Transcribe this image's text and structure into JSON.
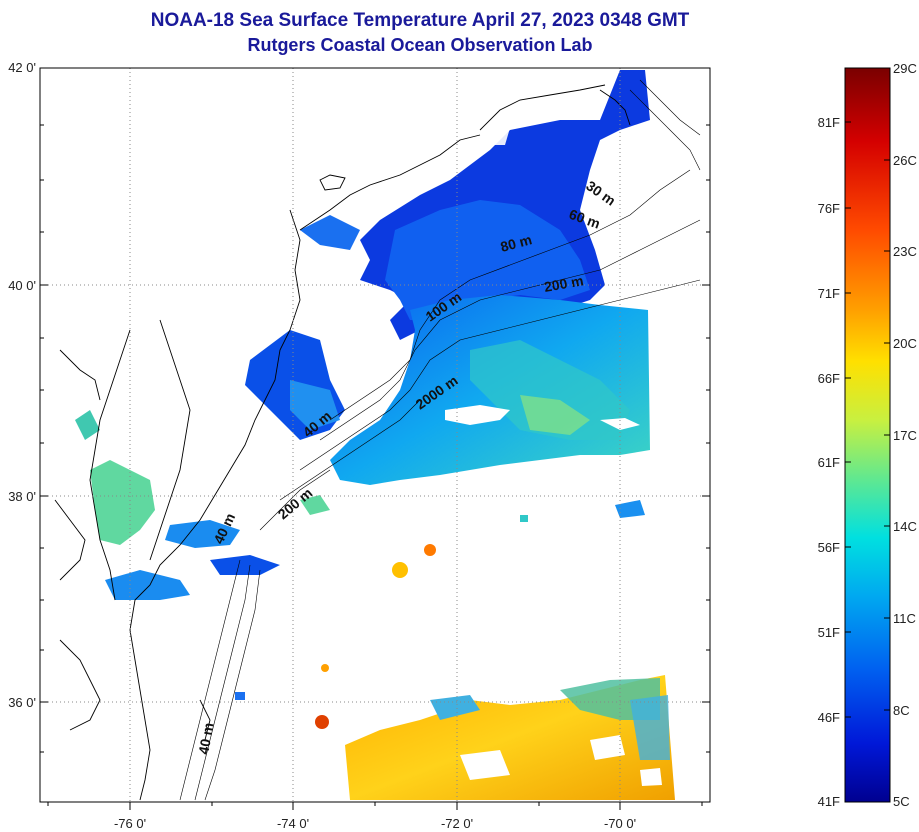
{
  "title_line1": "NOAA-18 Sea Surface Temperature April 27, 2023 0348 GMT",
  "title_line2": "Rutgers Coastal Ocean Observation Lab",
  "lat_labels": [
    "42 0'",
    "40 0'",
    "38 0'",
    "36 0'"
  ],
  "lon_labels": [
    "-76 0'",
    "-74 0'",
    "-72 0'",
    "-70 0'"
  ],
  "depth_labels": [
    "30 m",
    "60 m",
    "80 m",
    "200 m",
    "100 m",
    "2000 m",
    "40 m",
    "200 m",
    "40 m",
    "40 m"
  ],
  "colorbar": {
    "celsius": [
      "29C",
      "26C",
      "23C",
      "20C",
      "17C",
      "14C",
      "11C",
      "8C",
      "5C"
    ],
    "fahrenheit": [
      "81F",
      "76F",
      "71F",
      "66F",
      "61F",
      "56F",
      "51F",
      "46F",
      "41F"
    ],
    "gradient_colors": [
      "#7a0000",
      "#d40000",
      "#ff4a00",
      "#ffa000",
      "#ffe000",
      "#c8f040",
      "#60e890",
      "#00e0e0",
      "#00a8f0",
      "#0060f0",
      "#0018d8",
      "#000090"
    ]
  }
}
